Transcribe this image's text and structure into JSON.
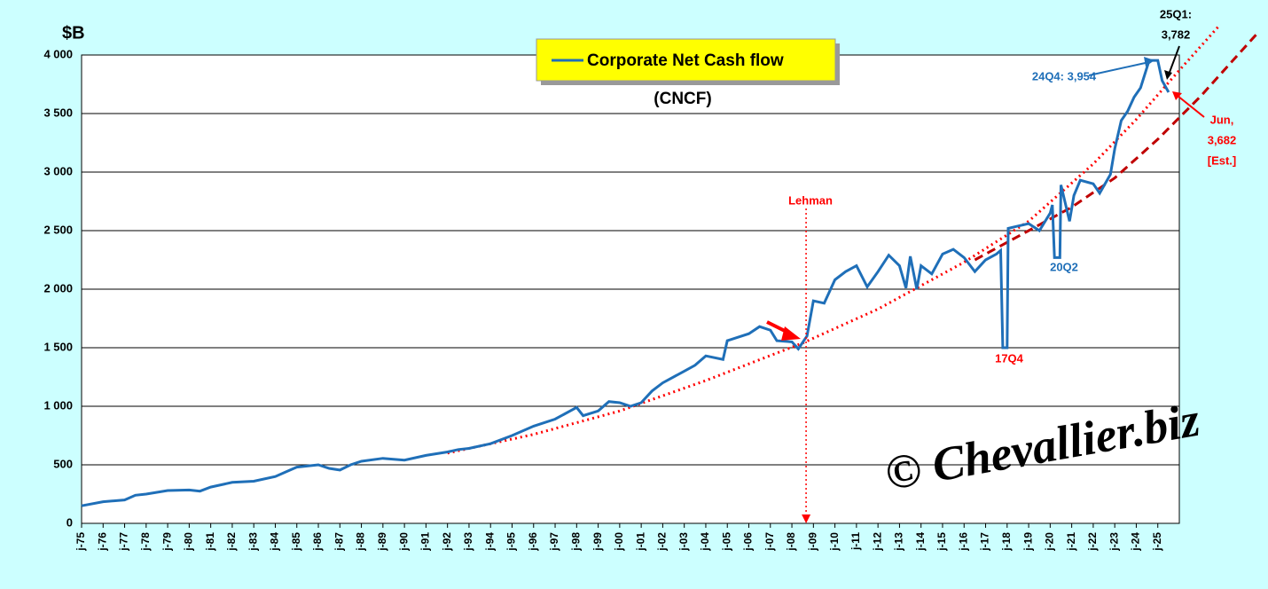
{
  "chart_data": {
    "type": "line",
    "title": "(CNCF)",
    "y_label": "$B",
    "xlim": [
      1975,
      2026
    ],
    "xticks": [
      {
        "value": 1975,
        "label": "j-75"
      },
      {
        "value": 1976,
        "label": "j-76"
      },
      {
        "value": 1977,
        "label": "j-77"
      },
      {
        "value": 1978,
        "label": "j-78"
      },
      {
        "value": 1979,
        "label": "j-79"
      },
      {
        "value": 1980,
        "label": "j-80"
      },
      {
        "value": 1981,
        "label": "j-81"
      },
      {
        "value": 1982,
        "label": "j-82"
      },
      {
        "value": 1983,
        "label": "j-83"
      },
      {
        "value": 1984,
        "label": "j-84"
      },
      {
        "value": 1985,
        "label": "j-85"
      },
      {
        "value": 1986,
        "label": "j-86"
      },
      {
        "value": 1987,
        "label": "j-87"
      },
      {
        "value": 1988,
        "label": "j-88"
      },
      {
        "value": 1989,
        "label": "j-89"
      },
      {
        "value": 1990,
        "label": "j-90"
      },
      {
        "value": 1991,
        "label": "j-91"
      },
      {
        "value": 1992,
        "label": "j-92"
      },
      {
        "value": 1993,
        "label": "j-93"
      },
      {
        "value": 1994,
        "label": "j-94"
      },
      {
        "value": 1995,
        "label": "j-95"
      },
      {
        "value": 1996,
        "label": "j-96"
      },
      {
        "value": 1997,
        "label": "j-97"
      },
      {
        "value": 1998,
        "label": "j-98"
      },
      {
        "value": 1999,
        "label": "j-99"
      },
      {
        "value": 2000,
        "label": "j-00"
      },
      {
        "value": 2001,
        "label": "j-01"
      },
      {
        "value": 2002,
        "label": "j-02"
      },
      {
        "value": 2003,
        "label": "j-03"
      },
      {
        "value": 2004,
        "label": "j-04"
      },
      {
        "value": 2005,
        "label": "j-05"
      },
      {
        "value": 2006,
        "label": "j-06"
      },
      {
        "value": 2007,
        "label": "j-07"
      },
      {
        "value": 2008,
        "label": "j-08"
      },
      {
        "value": 2009,
        "label": "j-09"
      },
      {
        "value": 2010,
        "label": "j-10"
      },
      {
        "value": 2011,
        "label": "j-11"
      },
      {
        "value": 2012,
        "label": "j-12"
      },
      {
        "value": 2013,
        "label": "j-13"
      },
      {
        "value": 2014,
        "label": "j-14"
      },
      {
        "value": 2015,
        "label": "j-15"
      },
      {
        "value": 2016,
        "label": "j-16"
      },
      {
        "value": 2017,
        "label": "j-17"
      },
      {
        "value": 2018,
        "label": "j-18"
      },
      {
        "value": 2019,
        "label": "j-19"
      },
      {
        "value": 2020,
        "label": "j-20"
      },
      {
        "value": 2021,
        "label": "j-21"
      },
      {
        "value": 2022,
        "label": "j-22"
      },
      {
        "value": 2023,
        "label": "j-23"
      },
      {
        "value": 2024,
        "label": "j-24"
      },
      {
        "value": 2025,
        "label": "j-25"
      }
    ],
    "ylim": [
      0,
      4000
    ],
    "yticks": [
      0,
      500,
      {
        "value": 1000,
        "label": "1 000"
      },
      {
        "value": 1500,
        "label": "1 500"
      },
      {
        "value": 2000,
        "label": "2 000"
      },
      {
        "value": 2500,
        "label": "2 500"
      },
      {
        "value": 3000,
        "label": "3 000"
      },
      {
        "value": 3500,
        "label": "3 500"
      },
      {
        "value": 4000,
        "label": "4 000"
      }
    ],
    "grid": true,
    "series": [
      {
        "name": "Corporate Net Cash flow",
        "color": "#1f6fb8",
        "style": "solid",
        "x": [
          1975,
          1976,
          1977,
          1977.5,
          1978,
          1979,
          1980,
          1980.5,
          1981,
          1982,
          1983,
          1984,
          1984.5,
          1985,
          1986,
          1986.5,
          1987,
          1987.5,
          1988,
          1989,
          1990,
          1991,
          1992,
          1992.5,
          1993,
          1994,
          1995,
          1996,
          1997,
          1998,
          1998.3,
          1999,
          1999.5,
          2000,
          2000.5,
          2001,
          2001.5,
          2002,
          2003,
          2003.5,
          2004,
          2004.8,
          2005,
          2006,
          2006.5,
          2007,
          2007.3,
          2008,
          2008.3,
          2008.7,
          2009,
          2009.5,
          2010,
          2010.5,
          2011,
          2011.5,
          2012,
          2012.5,
          2013,
          2013.3,
          2013.5,
          2013.8,
          2014,
          2014.5,
          2015,
          2015.5,
          2016,
          2016.5,
          2017,
          2017.5,
          2017.7,
          2017.8,
          2018,
          2018.05,
          2019,
          2019.5,
          2020,
          2020.1,
          2020.2,
          2020.45,
          2020.5,
          2020.9,
          2021.1,
          2021.4,
          2022,
          2022.3,
          2022.8,
          2023,
          2023.3,
          2023.6,
          2023.9,
          2024.2,
          2024.6,
          2025,
          2025.2,
          2025.5
        ],
        "values": [
          150,
          185,
          200,
          240,
          250,
          280,
          285,
          275,
          310,
          350,
          360,
          400,
          440,
          480,
          500,
          470,
          455,
          500,
          530,
          555,
          540,
          580,
          610,
          630,
          640,
          680,
          750,
          830,
          890,
          990,
          920,
          960,
          1040,
          1030,
          1000,
          1030,
          1130,
          1200,
          1300,
          1350,
          1430,
          1400,
          1560,
          1620,
          1680,
          1650,
          1560,
          1550,
          1490,
          1600,
          1900,
          1880,
          2080,
          2150,
          2200,
          2020,
          2150,
          2290,
          2200,
          2010,
          2280,
          2000,
          2200,
          2130,
          2300,
          2340,
          2270,
          2150,
          2250,
          2300,
          2330,
          1500,
          1500,
          2520,
          2560,
          2500,
          2650,
          2720,
          2270,
          2270,
          2890,
          2580,
          2800,
          2930,
          2900,
          2820,
          2980,
          3200,
          3440,
          3520,
          3640,
          3720,
          3954,
          3954,
          3782,
          3682
        ]
      },
      {
        "color": "#ff0000",
        "style": "dotted",
        "x": [
          1992,
          1996,
          2000,
          2004,
          2008.5,
          2012,
          2016,
          2019,
          2022,
          2024,
          2026,
          2027.9
        ],
        "values": [
          600,
          760,
          960,
          1220,
          1540,
          1830,
          2230,
          2580,
          3070,
          3450,
          3870,
          4260
        ]
      },
      {
        "color": "#c00000",
        "style": "dashed",
        "x": [
          2016.5,
          2019,
          2021,
          2023,
          2025,
          2027,
          2029.6
        ],
        "values": [
          2250,
          2500,
          2700,
          2950,
          3280,
          3650,
          4180
        ]
      }
    ],
    "annotations": [
      [
        "Lehman"
      ],
      [
        "24Q4: 3,954"
      ],
      [
        "25Q1:",
        "3,782"
      ],
      [
        "Jun,",
        "3,682",
        "[Est.]"
      ],
      [
        "20Q2"
      ],
      [
        "17Q4"
      ]
    ],
    "watermark": "© Chevallier.biz"
  }
}
